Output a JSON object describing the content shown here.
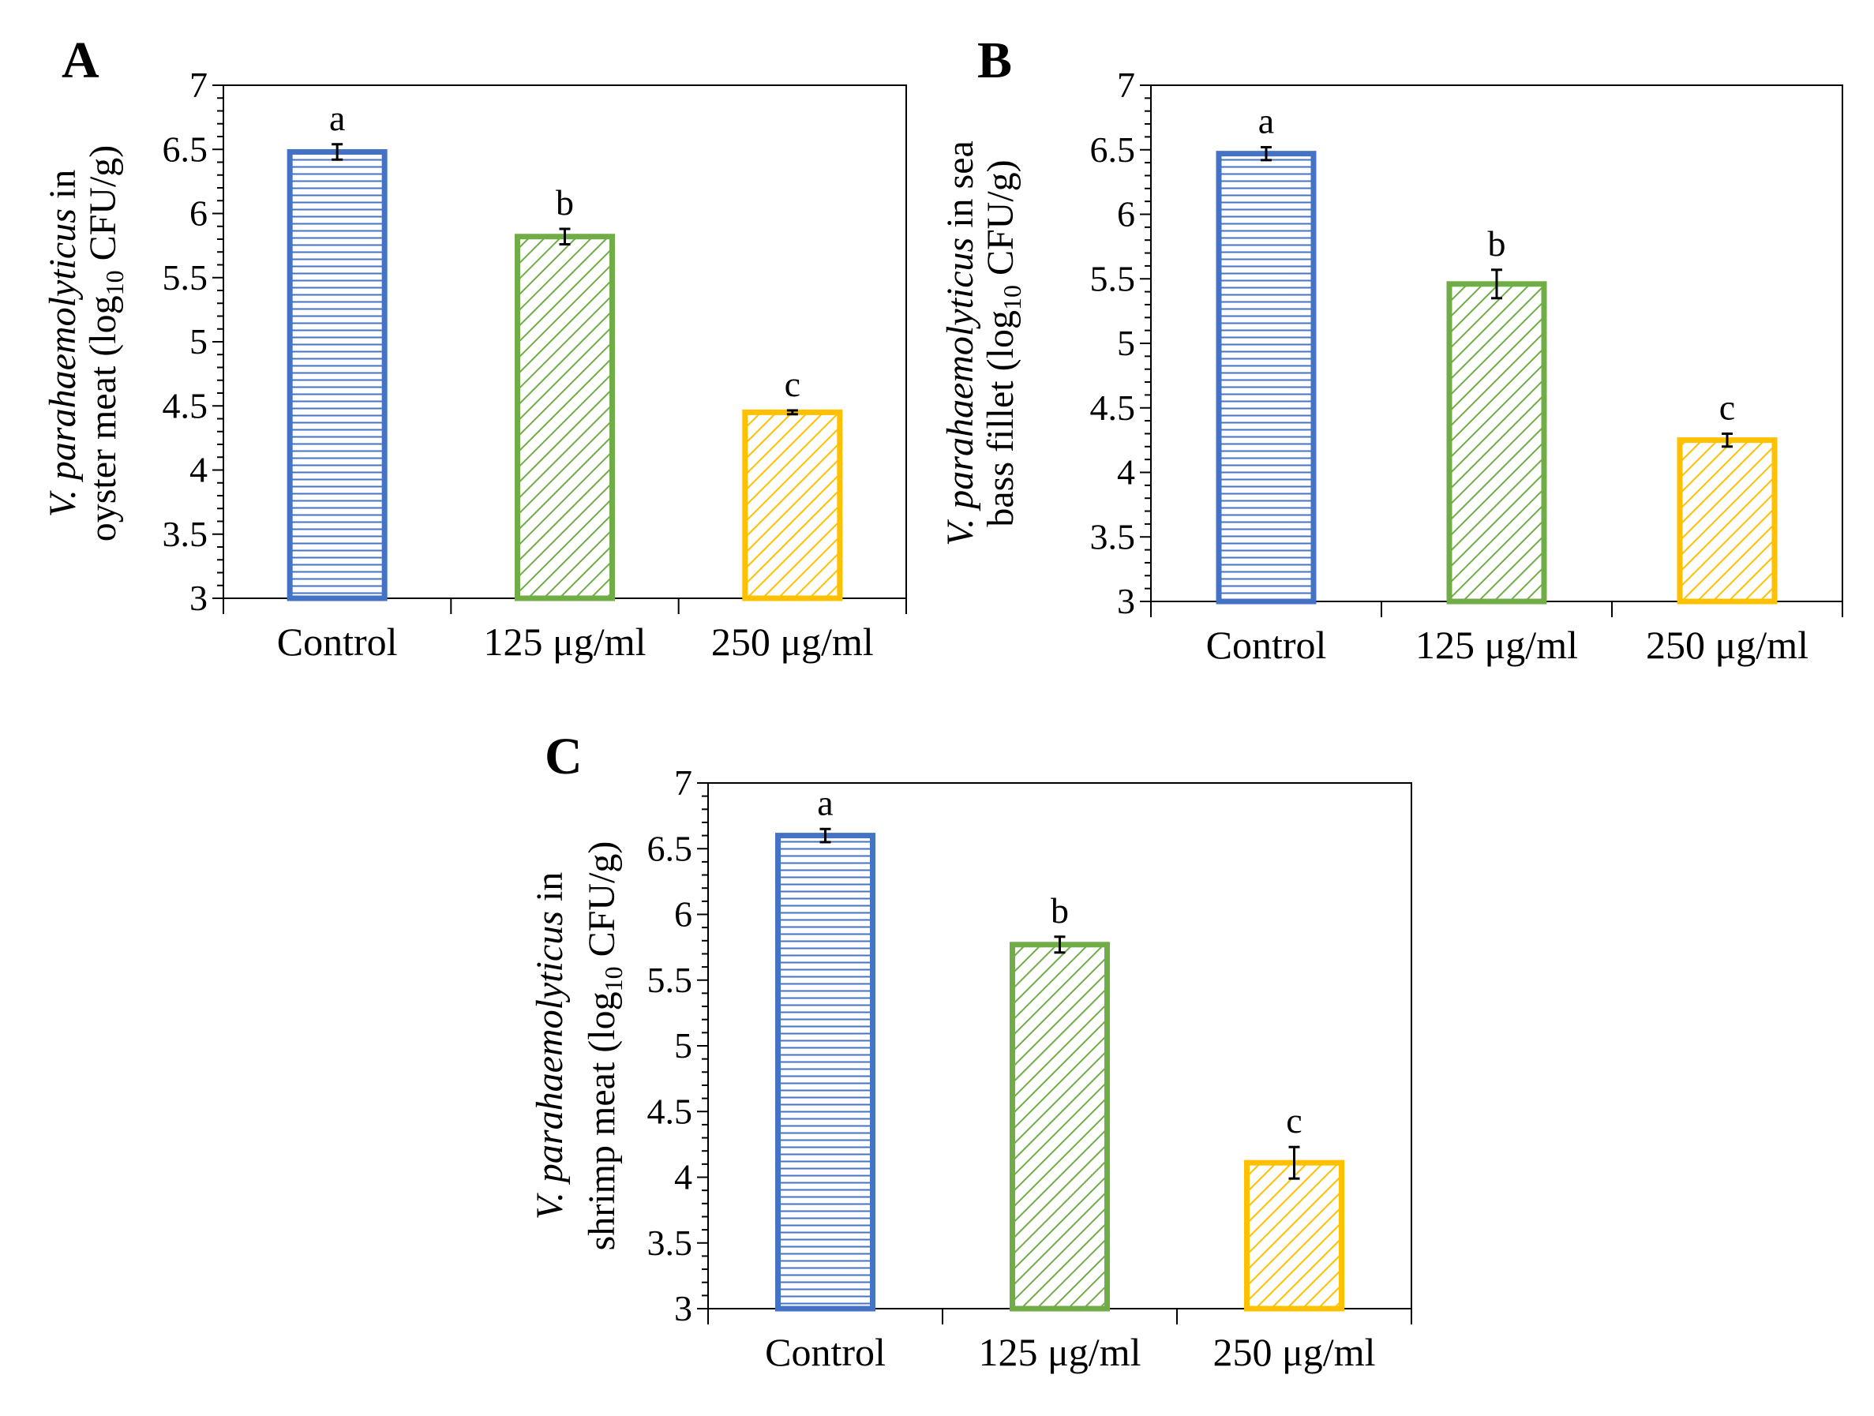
{
  "chart_data": [
    {
      "type": "bar",
      "panel": "A",
      "categories": [
        "Control",
        "125 μg/ml",
        "250 μg/ml"
      ],
      "values": [
        6.48,
        5.82,
        4.45
      ],
      "errors": [
        0.06,
        0.06,
        0.015
      ],
      "significance": [
        "a",
        "b",
        "c"
      ],
      "colors": [
        "#4472C4",
        "#70AD47",
        "#FFC000"
      ],
      "patterns": [
        "horizontal",
        "diagonal",
        "diagonal"
      ],
      "ylabel": {
        "line1_italic": "V. parahaemolyticus",
        "line1_rest": " in",
        "line2_pre": "oyster meat (log",
        "line2_sub": "10",
        "line2_post": " CFU/g)"
      },
      "ylim": [
        3,
        7
      ],
      "yticks": [
        "3",
        "3.5",
        "4",
        "4.5",
        "5",
        "5.5",
        "6",
        "6.5",
        "7"
      ],
      "xlabel": "",
      "grid": false
    },
    {
      "type": "bar",
      "panel": "B",
      "categories": [
        "Control",
        "125 μg/ml",
        "250 μg/ml"
      ],
      "values": [
        6.47,
        5.46,
        4.25
      ],
      "errors": [
        0.05,
        0.11,
        0.05
      ],
      "significance": [
        "a",
        "b",
        "c"
      ],
      "colors": [
        "#4472C4",
        "#70AD47",
        "#FFC000"
      ],
      "patterns": [
        "horizontal",
        "diagonal",
        "diagonal"
      ],
      "ylabel": {
        "line1_italic": "V. parahaemolyticus",
        "line1_rest": " in sea",
        "line2_pre": "bass fillet (log",
        "line2_sub": "10",
        "line2_post": " CFU/g)"
      },
      "ylim": [
        3,
        7
      ],
      "yticks": [
        "3",
        "3.5",
        "4",
        "4.5",
        "5",
        "5.5",
        "6",
        "6.5",
        "7"
      ],
      "xlabel": "",
      "grid": false
    },
    {
      "type": "bar",
      "panel": "C",
      "categories": [
        "Control",
        "125 μg/ml",
        "250 μg/ml"
      ],
      "values": [
        6.6,
        5.77,
        4.11
      ],
      "errors": [
        0.05,
        0.06,
        0.12
      ],
      "significance": [
        "a",
        "b",
        "c"
      ],
      "colors": [
        "#4472C4",
        "#70AD47",
        "#FFC000"
      ],
      "patterns": [
        "horizontal",
        "diagonal",
        "diagonal"
      ],
      "ylabel": {
        "line1_italic": "V. parahaemolyticus",
        "line1_rest": " in",
        "line2_pre": "shrimp meat (log",
        "line2_sub": "10",
        "line2_post": " CFU/g)"
      },
      "ylim": [
        3,
        7
      ],
      "yticks": [
        "3",
        "3.5",
        "4",
        "4.5",
        "5",
        "5.5",
        "6",
        "6.5",
        "7"
      ],
      "xlabel": "",
      "grid": false
    }
  ]
}
